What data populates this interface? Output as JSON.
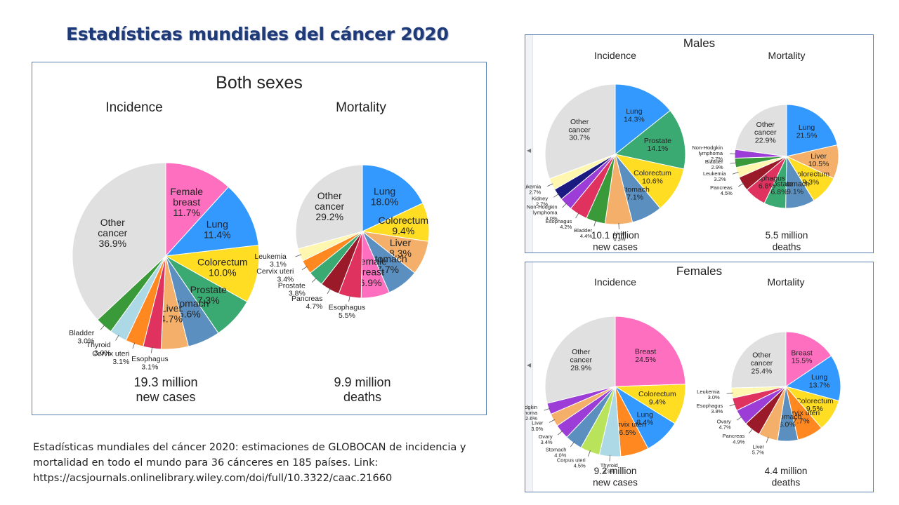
{
  "slide": {
    "title": "Estadísticas mundiales del cáncer 2020",
    "caption_lines": [
      "Estadísticas mundiales del cáncer 2020: estimaciones de GLOBOCAN de incidencia y",
      "mortalidad en todo el mundo para 36 cánceres en 185 países. Link:",
      "https://acsjournals.onlinelibrary.wiley.com/doi/full/10.3322/caac.21660"
    ]
  },
  "panels": {
    "both": {
      "title": "Both sexes"
    },
    "males": {
      "title": "Males"
    },
    "females": {
      "title": "Females"
    }
  },
  "colors": {
    "lung": "#3399ff",
    "female_breast": "#ff6fc0",
    "colorectum": "#ffdd22",
    "prostate": "#3aaa72",
    "stomach": "#5b8fbf",
    "liver": "#f4b06a",
    "esophagus": "#e0325f",
    "cervix": "#ff8820",
    "thyroid": "#add8e6",
    "bladder": "#3a9a3a",
    "pancreas": "#9b1a2a",
    "leukemia": "#fff7b0",
    "kidney": "#1a1a80",
    "nhl": "#9b3dd6",
    "ovary": "#9b3dd6",
    "corpus": "#b8e35a",
    "other": "#e0e0e0"
  },
  "chart_data": [
    {
      "type": "pie",
      "panel": "Both sexes",
      "title": "Incidence",
      "footer": [
        "19.3 million",
        "new cases"
      ],
      "slices": [
        {
          "name": "Female breast",
          "label": [
            "Female",
            "breast",
            "11.7%"
          ],
          "value": 11.7,
          "color": "#ff6fc0"
        },
        {
          "name": "Lung",
          "label": [
            "Lung",
            "11.4%"
          ],
          "value": 11.4,
          "color": "#3399ff"
        },
        {
          "name": "Colorectum",
          "label": [
            "Colorectum",
            "10.0%"
          ],
          "value": 10.0,
          "color": "#ffdd22"
        },
        {
          "name": "Prostate",
          "label": [
            "Prostate",
            "7.3%"
          ],
          "value": 7.3,
          "color": "#3aaa72"
        },
        {
          "name": "Stomach",
          "label": [
            "Stomach",
            "5.6%"
          ],
          "value": 5.6,
          "color": "#5b8fbf"
        },
        {
          "name": "Liver",
          "label": [
            "Liver",
            "4.7%"
          ],
          "value": 4.7,
          "color": "#f4b06a"
        },
        {
          "name": "Esophagus",
          "label": [
            "Esophagus",
            "3.1%"
          ],
          "value": 3.1,
          "color": "#e0325f"
        },
        {
          "name": "Cervix uteri",
          "label": [
            "Cervix uteri",
            "3.1%"
          ],
          "value": 3.1,
          "color": "#ff8820"
        },
        {
          "name": "Thyroid",
          "label": [
            "Thyroid",
            "3.0%"
          ],
          "value": 3.0,
          "color": "#add8e6"
        },
        {
          "name": "Bladder",
          "label": [
            "Bladder",
            "3.0%"
          ],
          "value": 3.0,
          "color": "#3a9a3a"
        },
        {
          "name": "Other cancer",
          "label": [
            "Other",
            "cancer",
            "36.9%"
          ],
          "value": 36.9,
          "color": "#e0e0e0"
        }
      ]
    },
    {
      "type": "pie",
      "panel": "Both sexes",
      "title": "Mortality",
      "footer": [
        "9.9 million",
        "deaths"
      ],
      "slices": [
        {
          "name": "Lung",
          "label": [
            "Lung",
            "18.0%"
          ],
          "value": 18.0,
          "color": "#3399ff"
        },
        {
          "name": "Colorectum",
          "label": [
            "Colorectum",
            "9.4%"
          ],
          "value": 9.4,
          "color": "#ffdd22"
        },
        {
          "name": "Liver",
          "label": [
            "Liver",
            "8.3%"
          ],
          "value": 8.3,
          "color": "#f4b06a"
        },
        {
          "name": "Stomach",
          "label": [
            "Stomach",
            "7.7%"
          ],
          "value": 7.7,
          "color": "#5b8fbf"
        },
        {
          "name": "Female breast",
          "label": [
            "Female",
            "breast",
            "6.9%"
          ],
          "value": 6.9,
          "color": "#ff6fc0"
        },
        {
          "name": "Esophagus",
          "label": [
            "Esophagus",
            "5.5%"
          ],
          "value": 5.5,
          "color": "#e0325f"
        },
        {
          "name": "Pancreas",
          "label": [
            "Pancreas",
            "4.7%"
          ],
          "value": 4.7,
          "color": "#9b1a2a"
        },
        {
          "name": "Prostate",
          "label": [
            "Prostate",
            "3.8%"
          ],
          "value": 3.8,
          "color": "#3aaa72"
        },
        {
          "name": "Cervix uteri",
          "label": [
            "Cervix uteri",
            "3.4%"
          ],
          "value": 3.4,
          "color": "#ff8820"
        },
        {
          "name": "Leukemia",
          "label": [
            "Leukemia",
            "3.1%"
          ],
          "value": 3.1,
          "color": "#fff7b0"
        },
        {
          "name": "Other cancer",
          "label": [
            "Other",
            "cancer",
            "29.2%"
          ],
          "value": 29.2,
          "color": "#e0e0e0"
        }
      ]
    },
    {
      "type": "pie",
      "panel": "Males",
      "title": "Incidence",
      "footer": [
        "10.1 million",
        "new cases"
      ],
      "slices": [
        {
          "name": "Lung",
          "label": [
            "Lung",
            "14.3%"
          ],
          "value": 14.3,
          "color": "#3399ff"
        },
        {
          "name": "Prostate",
          "label": [
            "Prostate",
            "14.1%"
          ],
          "value": 14.1,
          "color": "#3aaa72"
        },
        {
          "name": "Colorectum",
          "label": [
            "Colorectum",
            "10.6%"
          ],
          "value": 10.6,
          "color": "#ffdd22"
        },
        {
          "name": "Stomach",
          "label": [
            "Stomach",
            "7.1%"
          ],
          "value": 7.1,
          "color": "#5b8fbf"
        },
        {
          "name": "Liver",
          "label": [
            "Liver",
            "6.3%"
          ],
          "value": 6.3,
          "color": "#f4b06a"
        },
        {
          "name": "Bladder",
          "label": [
            "Bladder",
            "4.4%"
          ],
          "value": 4.4,
          "color": "#3a9a3a"
        },
        {
          "name": "Esophagus",
          "label": [
            "Esophagus",
            "4.2%"
          ],
          "value": 4.2,
          "color": "#e0325f"
        },
        {
          "name": "Non-Hodgkin lymphoma",
          "label": [
            "Non-Hodgkin",
            "lymphoma",
            "3.0%"
          ],
          "value": 3.0,
          "color": "#9b3dd6"
        },
        {
          "name": "Kidney",
          "label": [
            "Kidney",
            "2.7%"
          ],
          "value": 2.7,
          "color": "#1a1a80"
        },
        {
          "name": "Leukemia",
          "label": [
            "Leukemia",
            "2.7%"
          ],
          "value": 2.7,
          "color": "#fff7b0"
        },
        {
          "name": "Other cancer",
          "label": [
            "Other",
            "cancer",
            "30.7%"
          ],
          "value": 30.7,
          "color": "#e0e0e0"
        }
      ]
    },
    {
      "type": "pie",
      "panel": "Males",
      "title": "Mortality",
      "footer": [
        "5.5 million",
        "deaths"
      ],
      "slices": [
        {
          "name": "Lung",
          "label": [
            "Lung",
            "21.5%"
          ],
          "value": 21.5,
          "color": "#3399ff"
        },
        {
          "name": "Liver",
          "label": [
            "Liver",
            "10.5%"
          ],
          "value": 10.5,
          "color": "#f4b06a"
        },
        {
          "name": "Colorectum",
          "label": [
            "Colorectum",
            "9.3%"
          ],
          "value": 9.3,
          "color": "#ffdd22"
        },
        {
          "name": "Stomach",
          "label": [
            "Stomach",
            "9.1%"
          ],
          "value": 9.1,
          "color": "#5b8fbf"
        },
        {
          "name": "Prostate",
          "label": [
            "Prostate",
            "6.8%"
          ],
          "value": 6.8,
          "color": "#3aaa72"
        },
        {
          "name": "Esophagus",
          "label": [
            "Esophagus",
            "6.8%"
          ],
          "value": 6.8,
          "color": "#e0325f"
        },
        {
          "name": "Pancreas",
          "label": [
            "Pancreas",
            "4.5%"
          ],
          "value": 4.5,
          "color": "#9b1a2a"
        },
        {
          "name": "Leukemia",
          "label": [
            "Leukemia",
            "3.2%"
          ],
          "value": 3.2,
          "color": "#fff7b0"
        },
        {
          "name": "Bladder",
          "label": [
            "Bladder",
            "2.9%"
          ],
          "value": 2.9,
          "color": "#3a9a3a"
        },
        {
          "name": "Non-Hodgkin lymphoma",
          "label": [
            "Non-Hodgkin",
            "lymphoma",
            "2.7%"
          ],
          "value": 2.7,
          "color": "#9b3dd6"
        },
        {
          "name": "Other cancer",
          "label": [
            "Other",
            "cancer",
            "22.9%"
          ],
          "value": 22.9,
          "color": "#e0e0e0"
        }
      ]
    },
    {
      "type": "pie",
      "panel": "Females",
      "title": "Incidence",
      "footer": [
        "9.2 million",
        "new cases"
      ],
      "slices": [
        {
          "name": "Breast",
          "label": [
            "Breast",
            "24.5%"
          ],
          "value": 24.5,
          "color": "#ff6fc0"
        },
        {
          "name": "Colorectum",
          "label": [
            "Colorectum",
            "9.4%"
          ],
          "value": 9.4,
          "color": "#ffdd22"
        },
        {
          "name": "Lung",
          "label": [
            "Lung",
            "8.4%"
          ],
          "value": 8.4,
          "color": "#3399ff"
        },
        {
          "name": "Cervix uteri",
          "label": [
            "Cervix uteri",
            "6.5%"
          ],
          "value": 6.5,
          "color": "#ff8820"
        },
        {
          "name": "Thyroid",
          "label": [
            "Thyroid",
            "4.9%"
          ],
          "value": 4.9,
          "color": "#add8e6"
        },
        {
          "name": "Corpus uteri",
          "label": [
            "Corpus uteri",
            "4.5%"
          ],
          "value": 4.5,
          "color": "#b8e35a"
        },
        {
          "name": "Stomach",
          "label": [
            "Stomach",
            "4.0%"
          ],
          "value": 4.0,
          "color": "#5b8fbf"
        },
        {
          "name": "Ovary",
          "label": [
            "Ovary",
            "3.4%"
          ],
          "value": 3.4,
          "color": "#9b3dd6"
        },
        {
          "name": "Liver",
          "label": [
            "Liver",
            "3.0%"
          ],
          "value": 3.0,
          "color": "#f4b06a"
        },
        {
          "name": "Non-Hodgkin lymphoma",
          "label": [
            "Non-Hodgkin",
            "lymphoma",
            "2.6%"
          ],
          "value": 2.6,
          "color": "#9b3dd6"
        },
        {
          "name": "Other cancer",
          "label": [
            "Other",
            "cancer",
            "28.9%"
          ],
          "value": 28.9,
          "color": "#e0e0e0"
        }
      ]
    },
    {
      "type": "pie",
      "panel": "Females",
      "title": "Mortality",
      "footer": [
        "4.4 million",
        "deaths"
      ],
      "slices": [
        {
          "name": "Breast",
          "label": [
            "Breast",
            "15.5%"
          ],
          "value": 15.5,
          "color": "#ff6fc0"
        },
        {
          "name": "Lung",
          "label": [
            "Lung",
            "13.7%"
          ],
          "value": 13.7,
          "color": "#3399ff"
        },
        {
          "name": "Colorectum",
          "label": [
            "Colorectum",
            "9.5%"
          ],
          "value": 9.5,
          "color": "#ffdd22"
        },
        {
          "name": "Cervix uteri",
          "label": [
            "Cervix uteri",
            "7.7%"
          ],
          "value": 7.7,
          "color": "#ff8820"
        },
        {
          "name": "Stomach",
          "label": [
            "Stomach",
            "6.0%"
          ],
          "value": 6.0,
          "color": "#5b8fbf"
        },
        {
          "name": "Liver",
          "label": [
            "Liver",
            "5.7%"
          ],
          "value": 5.7,
          "color": "#f4b06a"
        },
        {
          "name": "Pancreas",
          "label": [
            "Pancreas",
            "4.9%"
          ],
          "value": 4.9,
          "color": "#9b1a2a"
        },
        {
          "name": "Ovary",
          "label": [
            "Ovary",
            "4.7%"
          ],
          "value": 4.7,
          "color": "#9b3dd6"
        },
        {
          "name": "Esophagus",
          "label": [
            "Esophagus",
            "3.8%"
          ],
          "value": 3.8,
          "color": "#e0325f"
        },
        {
          "name": "Leukemia",
          "label": [
            "Leukemia",
            "3.0%"
          ],
          "value": 3.0,
          "color": "#fff7b0"
        },
        {
          "name": "Other cancer",
          "label": [
            "Other",
            "cancer",
            "25.4%"
          ],
          "value": 25.4,
          "color": "#e0e0e0"
        }
      ]
    }
  ]
}
